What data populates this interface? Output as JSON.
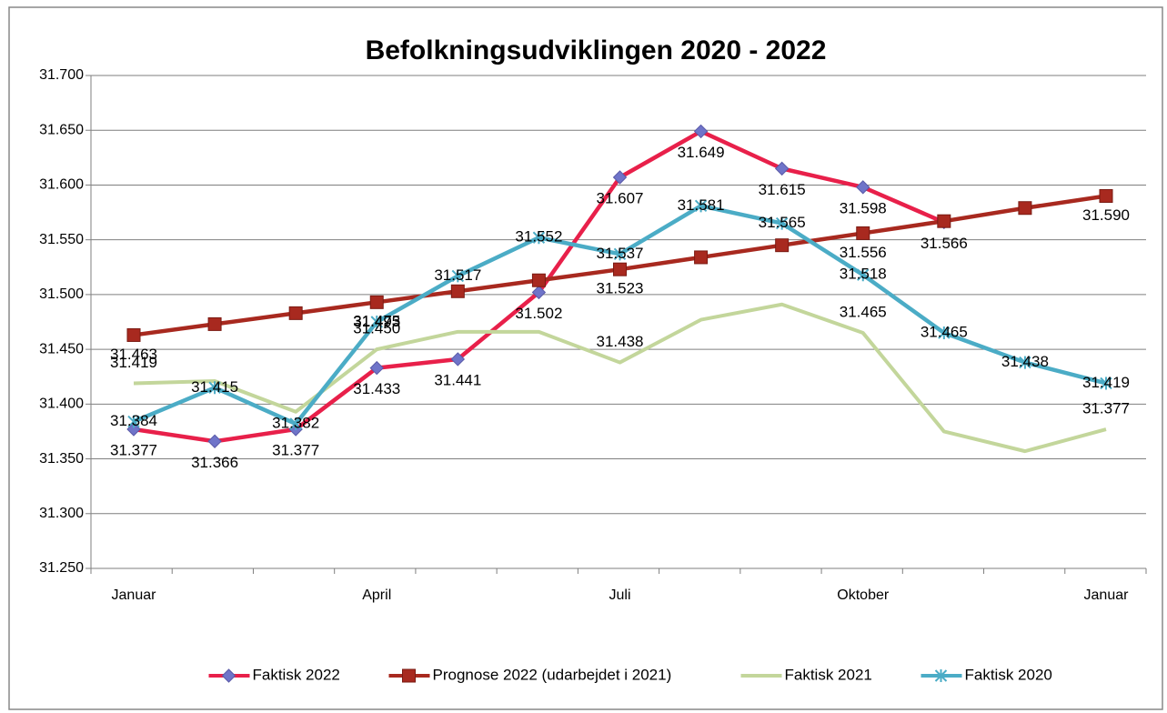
{
  "chart_data": {
    "type": "line",
    "title": "Befolkningsudviklingen 2020 - 2022",
    "categories": [
      "Januar",
      null,
      null,
      "April",
      null,
      null,
      "Juli",
      null,
      null,
      "Oktober",
      null,
      null,
      "Januar"
    ],
    "ylim": [
      31250,
      31700
    ],
    "yticks": [
      {
        "value": 31250,
        "label": "31.250"
      },
      {
        "value": 31300,
        "label": "31.300"
      },
      {
        "value": 31350,
        "label": "31.350"
      },
      {
        "value": 31400,
        "label": "31.400"
      },
      {
        "value": 31450,
        "label": "31.450"
      },
      {
        "value": 31500,
        "label": "31.500"
      },
      {
        "value": 31550,
        "label": "31.550"
      },
      {
        "value": 31600,
        "label": "31.600"
      },
      {
        "value": 31650,
        "label": "31.650"
      },
      {
        "value": 31700,
        "label": "31.700"
      }
    ],
    "grid": true,
    "legend": "bottom",
    "series": [
      {
        "name": "Faktisk 2022",
        "color": "#e8204a",
        "marker": "diamond",
        "marker_color": "#6f74c9",
        "values": [
          31377,
          31366,
          31377,
          31433,
          31441,
          31502,
          31607,
          31649,
          31615,
          31598,
          31566,
          null,
          null
        ],
        "value_labels": [
          "31.377",
          "31.366",
          "31.377",
          "31.433",
          "31.441",
          "31.502",
          "31.607",
          "31.649",
          "31.615",
          "31.598",
          "31.566",
          null,
          null
        ]
      },
      {
        "name": "Prognose 2022 (udarbejdet i 2021)",
        "color": "#a8291f",
        "marker": "square",
        "marker_color": "#a8291f",
        "values": [
          31463,
          31473,
          31483,
          31493,
          31503,
          31513,
          31523,
          31534,
          31545,
          31556,
          31567,
          31579,
          31590
        ],
        "value_labels": [
          "31.463",
          null,
          null,
          "31.493",
          null,
          null,
          "31.523",
          null,
          null,
          "31.556",
          null,
          null,
          "31.590"
        ]
      },
      {
        "name": "Faktisk 2021",
        "color": "#c3d69b",
        "marker": "none",
        "values": [
          31419,
          31421,
          31393,
          31450,
          31466,
          31466,
          31438,
          31477,
          31491,
          31465,
          31375,
          31357,
          31377
        ],
        "value_labels": [
          "31.419",
          null,
          null,
          "31.450",
          null,
          null,
          "31.438",
          null,
          null,
          "31.465",
          null,
          null,
          "31.377"
        ]
      },
      {
        "name": "Faktisk 2020",
        "color": "#4bacc6",
        "marker": "star",
        "marker_color": "#4bacc6",
        "values": [
          31384,
          31415,
          31382,
          31475,
          31517,
          31552,
          31537,
          31581,
          31565,
          31518,
          31465,
          31438,
          31419
        ],
        "value_labels": [
          "31.384",
          "31.415",
          "31.382",
          "31.475",
          "31.517",
          "31.552",
          "31.537",
          "31.581",
          "31.565",
          "31.518",
          "31.465",
          "31.438",
          "31.419"
        ]
      }
    ]
  }
}
